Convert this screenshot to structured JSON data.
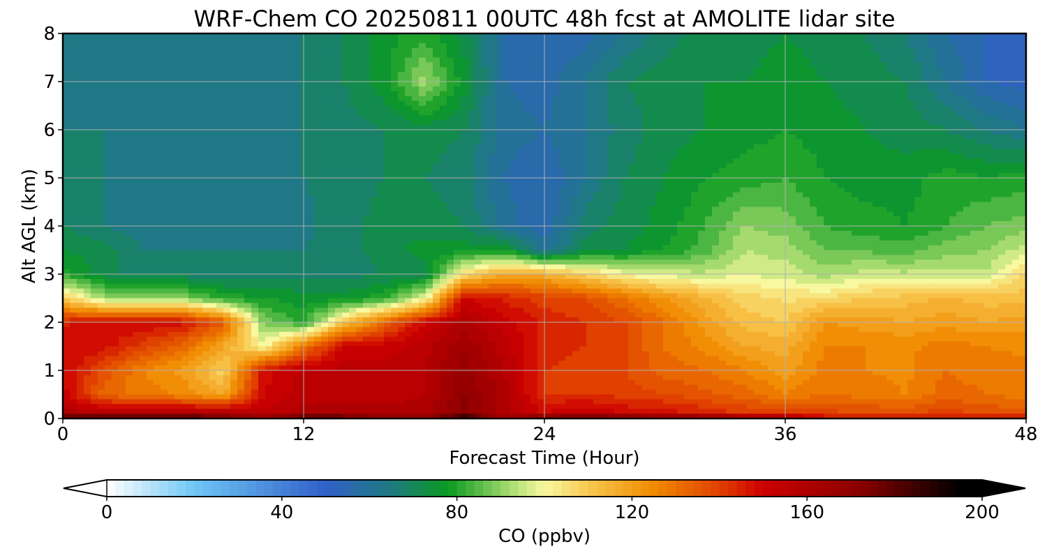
{
  "chart_data": {
    "type": "heatmap",
    "title": "WRF-Chem CO  20250811 00UTC 48h fcst at AMOLITE lidar site",
    "xlabel": "Forecast Time (Hour)",
    "ylabel": "Alt AGL (km)",
    "xlim": [
      0,
      48
    ],
    "ylim": [
      0,
      8
    ],
    "xticks": [
      0,
      12,
      24,
      36,
      48
    ],
    "yticks": [
      0,
      1,
      2,
      3,
      4,
      5,
      6,
      7,
      8
    ],
    "grid": true,
    "colorbar": {
      "label": "CO  (ppbv)",
      "range": [
        0,
        200
      ],
      "ticks": [
        0,
        40,
        80,
        120,
        160,
        200
      ],
      "extend": "both",
      "orientation": "horizontal",
      "palette_stops": [
        {
          "value": 0,
          "color": "#ffffff"
        },
        {
          "value": 20,
          "color": "#6ec6f5"
        },
        {
          "value": 50,
          "color": "#3060c8"
        },
        {
          "value": 65,
          "color": "#1e7a80"
        },
        {
          "value": 78,
          "color": "#0a9a20"
        },
        {
          "value": 95,
          "color": "#c6e880"
        },
        {
          "value": 100,
          "color": "#f8f8a0"
        },
        {
          "value": 110,
          "color": "#f8c850"
        },
        {
          "value": 125,
          "color": "#f08a00"
        },
        {
          "value": 140,
          "color": "#e04000"
        },
        {
          "value": 150,
          "color": "#cc0000"
        },
        {
          "value": 172,
          "color": "#8a0000"
        },
        {
          "value": 195,
          "color": "#000000"
        }
      ]
    },
    "hours": [
      0,
      2,
      4,
      6,
      8,
      10,
      12,
      14,
      16,
      18,
      20,
      22,
      24,
      26,
      28,
      30,
      32,
      34,
      36,
      38,
      40,
      42,
      44,
      46,
      48
    ],
    "levels_km": [
      0,
      0.1,
      0.5,
      1,
      1.5,
      2,
      2.5,
      3,
      3.5,
      4,
      5,
      6,
      7,
      8
    ],
    "co_ppbv": [
      [
        188,
        195,
        192,
        190,
        185,
        170,
        190,
        188,
        175,
        175,
        195,
        165,
        185,
        192,
        185,
        180,
        178,
        172,
        168,
        150,
        148,
        148,
        150,
        150,
        150
      ],
      [
        160,
        160,
        160,
        160,
        160,
        155,
        160,
        160,
        160,
        160,
        170,
        160,
        150,
        155,
        150,
        148,
        145,
        142,
        140,
        140,
        138,
        138,
        140,
        138,
        135
      ],
      [
        152,
        132,
        128,
        125,
        118,
        150,
        156,
        156,
        155,
        158,
        170,
        160,
        142,
        142,
        140,
        138,
        135,
        132,
        126,
        130,
        128,
        126,
        132,
        130,
        128
      ],
      [
        150,
        138,
        126,
        120,
        108,
        148,
        155,
        155,
        155,
        158,
        168,
        158,
        142,
        140,
        138,
        132,
        130,
        126,
        120,
        128,
        126,
        125,
        130,
        128,
        127
      ],
      [
        150,
        148,
        140,
        132,
        118,
        100,
        128,
        152,
        152,
        156,
        165,
        156,
        145,
        142,
        138,
        130,
        125,
        118,
        116,
        126,
        126,
        125,
        128,
        126,
        125
      ],
      [
        145,
        150,
        150,
        148,
        135,
        88,
        80,
        110,
        132,
        150,
        160,
        152,
        145,
        142,
        138,
        130,
        120,
        112,
        110,
        122,
        120,
        118,
        120,
        118,
        120
      ],
      [
        110,
        92,
        92,
        90,
        80,
        78,
        76,
        76,
        80,
        98,
        150,
        145,
        140,
        138,
        130,
        122,
        115,
        108,
        105,
        106,
        110,
        112,
        115,
        112,
        112
      ],
      [
        80,
        72,
        68,
        68,
        68,
        68,
        68,
        68,
        70,
        70,
        105,
        118,
        116,
        108,
        100,
        96,
        95,
        98,
        96,
        92,
        96,
        95,
        96,
        95,
        108
      ],
      [
        74,
        72,
        66,
        66,
        66,
        66,
        66,
        68,
        72,
        76,
        76,
        78,
        60,
        72,
        74,
        78,
        84,
        94,
        92,
        86,
        85,
        84,
        88,
        90,
        96
      ],
      [
        70,
        66,
        64,
        62,
        62,
        64,
        65,
        68,
        72,
        72,
        70,
        60,
        55,
        68,
        72,
        76,
        82,
        90,
        88,
        82,
        80,
        78,
        82,
        86,
        88
      ],
      [
        68,
        66,
        64,
        62,
        62,
        64,
        66,
        68,
        70,
        70,
        68,
        58,
        54,
        62,
        70,
        74,
        78,
        80,
        82,
        78,
        76,
        76,
        80,
        78,
        80
      ],
      [
        66,
        66,
        64,
        62,
        62,
        64,
        66,
        68,
        70,
        72,
        70,
        60,
        58,
        62,
        68,
        72,
        74,
        76,
        78,
        76,
        74,
        72,
        70,
        66,
        62
      ],
      [
        66,
        64,
        64,
        62,
        62,
        64,
        66,
        70,
        76,
        92,
        76,
        58,
        56,
        62,
        70,
        72,
        74,
        74,
        76,
        74,
        72,
        70,
        62,
        54,
        52
      ],
      [
        64,
        64,
        62,
        62,
        62,
        64,
        66,
        70,
        76,
        80,
        72,
        58,
        54,
        56,
        62,
        68,
        72,
        72,
        74,
        72,
        70,
        66,
        58,
        54,
        52
      ]
    ]
  }
}
